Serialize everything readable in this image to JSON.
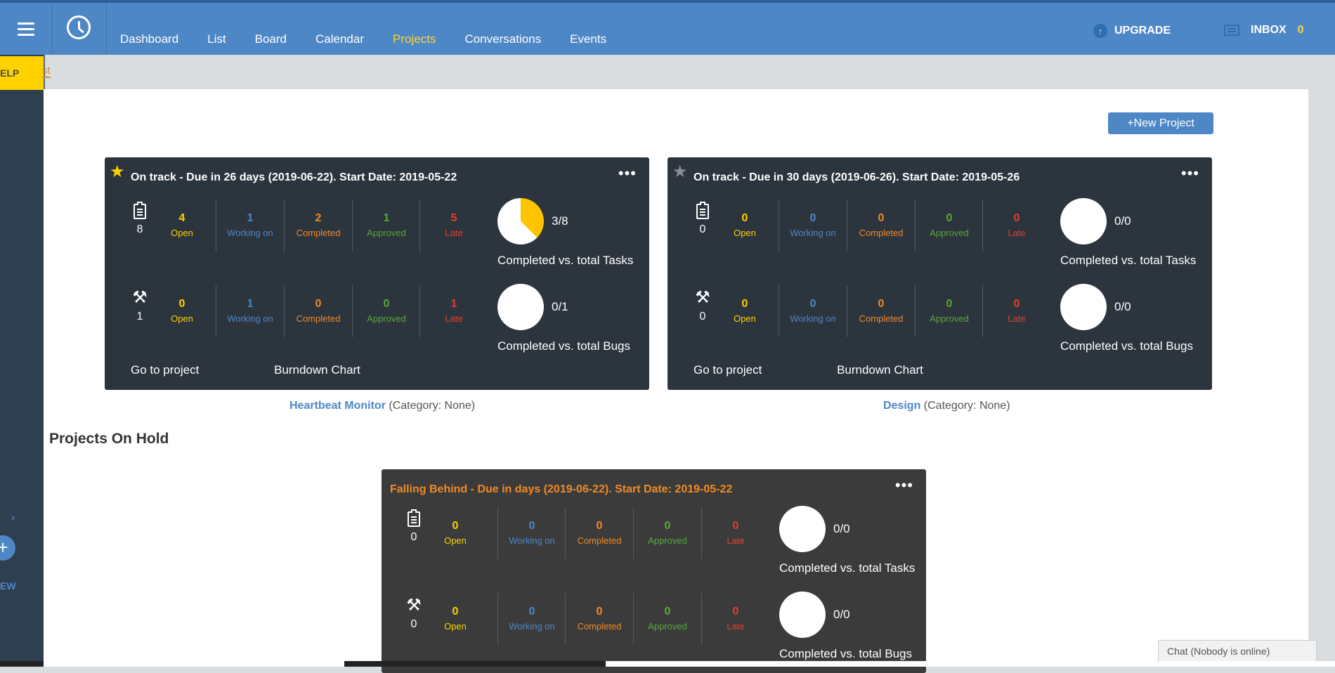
{
  "nav": {
    "items": [
      "Dashboard",
      "List",
      "Board",
      "Calendar",
      "Projects",
      "Conversations",
      "Events"
    ],
    "active": "Projects",
    "upgrade_label": "UPGRADE",
    "inbox_label": "INBOX",
    "inbox_count": "0"
  },
  "sidebar": {
    "help_label": "ELP",
    "tab_fragment": "st",
    "new_label": "EW",
    "plus_label": "+",
    "chevron": "›"
  },
  "actions": {
    "new_project_label": "+New Project"
  },
  "projects": [
    {
      "status_title": "On track - Due in 26 days (2019-06-22).   Start Date: 2019-05-22",
      "starred": true,
      "tasks": {
        "total": "8",
        "open": "4",
        "working_on": "1",
        "completed": "2",
        "approved": "1",
        "late": "5",
        "ratio": "3/8",
        "completed_fraction": 0.375,
        "caption": "Completed vs. total Tasks"
      },
      "bugs": {
        "total": "1",
        "open": "0",
        "working_on": "1",
        "completed": "0",
        "approved": "0",
        "late": "1",
        "ratio": "0/1",
        "completed_fraction": 0,
        "caption": "Completed vs. total Bugs"
      },
      "go_to_project": "Go to project",
      "burndown": "Burndown Chart",
      "name": "Heartbeat Monitor",
      "category": "(Category: None)"
    },
    {
      "status_title": "On track - Due in 30 days (2019-06-26).   Start Date: 2019-05-26",
      "starred": false,
      "tasks": {
        "total": "0",
        "open": "0",
        "working_on": "0",
        "completed": "0",
        "approved": "0",
        "late": "0",
        "ratio": "0/0",
        "completed_fraction": 0,
        "caption": "Completed vs. total Tasks"
      },
      "bugs": {
        "total": "0",
        "open": "0",
        "working_on": "0",
        "completed": "0",
        "approved": "0",
        "late": "0",
        "ratio": "0/0",
        "completed_fraction": 0,
        "caption": "Completed vs. total Bugs"
      },
      "go_to_project": "Go to project",
      "burndown": "Burndown Chart",
      "name": "Design",
      "category": "(Category: None)"
    }
  ],
  "on_hold": {
    "section_title": "Projects On Hold",
    "status_title": "Falling Behind - Due in days (2019-06-22).   Start Date: 2019-05-22",
    "tasks": {
      "total": "0",
      "open": "0",
      "working_on": "0",
      "completed": "0",
      "approved": "0",
      "late": "0",
      "ratio": "0/0",
      "caption": "Completed vs. total Tasks"
    },
    "bugs": {
      "total": "0",
      "open": "0",
      "working_on": "0",
      "completed": "0",
      "approved": "0",
      "late": "0",
      "ratio": "0/0",
      "caption": "Completed vs. total Bugs"
    }
  },
  "labels": {
    "open": "Open",
    "working_on": "Working on",
    "completed": "Completed",
    "approved": "Approved",
    "late": "Late"
  },
  "icons": [
    "menu-icon",
    "clock-icon",
    "upgrade-icon",
    "inbox-icon",
    "star-icon",
    "more-icon",
    "clipboard-icon",
    "wrench-icon"
  ],
  "colors": {
    "accent": "#4e87c6",
    "active_nav": "#ffd23a",
    "open": "#ffd200",
    "working": "#4e87c6",
    "completed": "#f08a25",
    "approved": "#58a83a",
    "late": "#e0402e",
    "card_bg": "#2c343e"
  },
  "chat": {
    "label": "Chat (Nobody is online)"
  }
}
